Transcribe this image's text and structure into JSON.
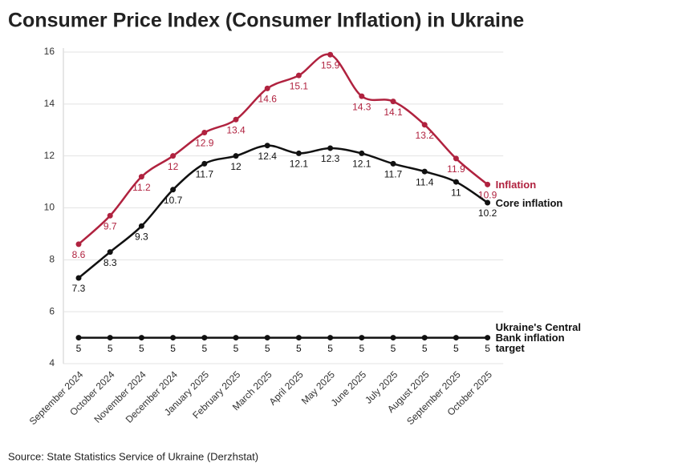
{
  "chart_data": {
    "type": "line",
    "title": "Consumer Price Index (Consumer Inflation) in Ukraine",
    "source": "Source: State Statistics Service of Ukraine (Derzhstat)",
    "categories": [
      "September 2024",
      "October 2024",
      "November 2024",
      "December 2024",
      "January 2025",
      "February 2025",
      "March 2025",
      "April 2025",
      "May 2025",
      "June 2025",
      "July 2025",
      "August 2025",
      "September 2025",
      "October 2025"
    ],
    "series": [
      {
        "name": "Inflation",
        "color": "#b0223f",
        "values": [
          8.6,
          9.7,
          11.2,
          12,
          12.9,
          13.4,
          14.6,
          15.1,
          15.9,
          14.3,
          14.1,
          13.2,
          11.9,
          10.9
        ]
      },
      {
        "name": "Core inflation",
        "color": "#111111",
        "values": [
          7.3,
          8.3,
          9.3,
          10.7,
          11.7,
          12,
          12.4,
          12.1,
          12.3,
          12.1,
          11.7,
          11.4,
          11,
          10.2
        ]
      },
      {
        "name": "Ukraine's Central Bank inflation target",
        "color": "#111111",
        "values": [
          5,
          5,
          5,
          5,
          5,
          5,
          5,
          5,
          5,
          5,
          5,
          5,
          5,
          5
        ]
      }
    ],
    "ylim": [
      4,
      16
    ],
    "yticks": [
      4,
      6,
      8,
      10,
      12,
      14,
      16
    ],
    "grid": true
  }
}
